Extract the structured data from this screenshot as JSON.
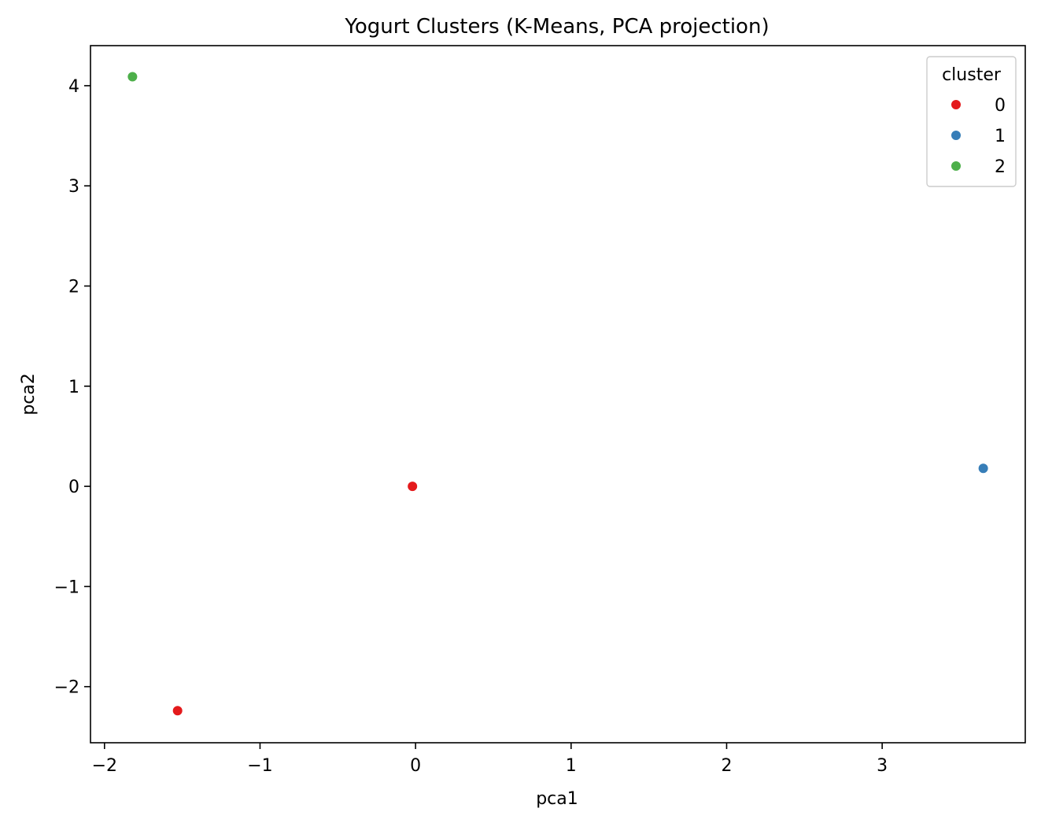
{
  "chart_data": {
    "type": "scatter",
    "title": "Yogurt Clusters (K-Means, PCA projection)",
    "xlabel": "pca1",
    "ylabel": "pca2",
    "xlim": [
      -2.09,
      3.92
    ],
    "ylim": [
      -2.56,
      4.4
    ],
    "xticks": [
      -2,
      -1,
      0,
      1,
      2,
      3
    ],
    "yticks": [
      -2,
      -1,
      0,
      1,
      2,
      3,
      4
    ],
    "xtick_labels": [
      "−2",
      "−1",
      "0",
      "1",
      "2",
      "3"
    ],
    "ytick_labels": [
      "−2",
      "−1",
      "0",
      "1",
      "2",
      "3",
      "4"
    ],
    "grid": false,
    "legend": {
      "title": "cluster",
      "placement": "top-right",
      "entries": [
        {
          "label": "0",
          "color": "#e41a1c"
        },
        {
          "label": "1",
          "color": "#377eb8"
        },
        {
          "label": "2",
          "color": "#4daf4a"
        }
      ]
    },
    "series": [
      {
        "name": "0",
        "color": "#e41a1c",
        "points": [
          {
            "x": -0.02,
            "y": 0.0
          },
          {
            "x": -1.53,
            "y": -2.24
          }
        ]
      },
      {
        "name": "1",
        "color": "#377eb8",
        "points": [
          {
            "x": 3.65,
            "y": 0.18
          }
        ]
      },
      {
        "name": "2",
        "color": "#4daf4a",
        "points": [
          {
            "x": -1.82,
            "y": 4.09
          }
        ]
      }
    ]
  }
}
